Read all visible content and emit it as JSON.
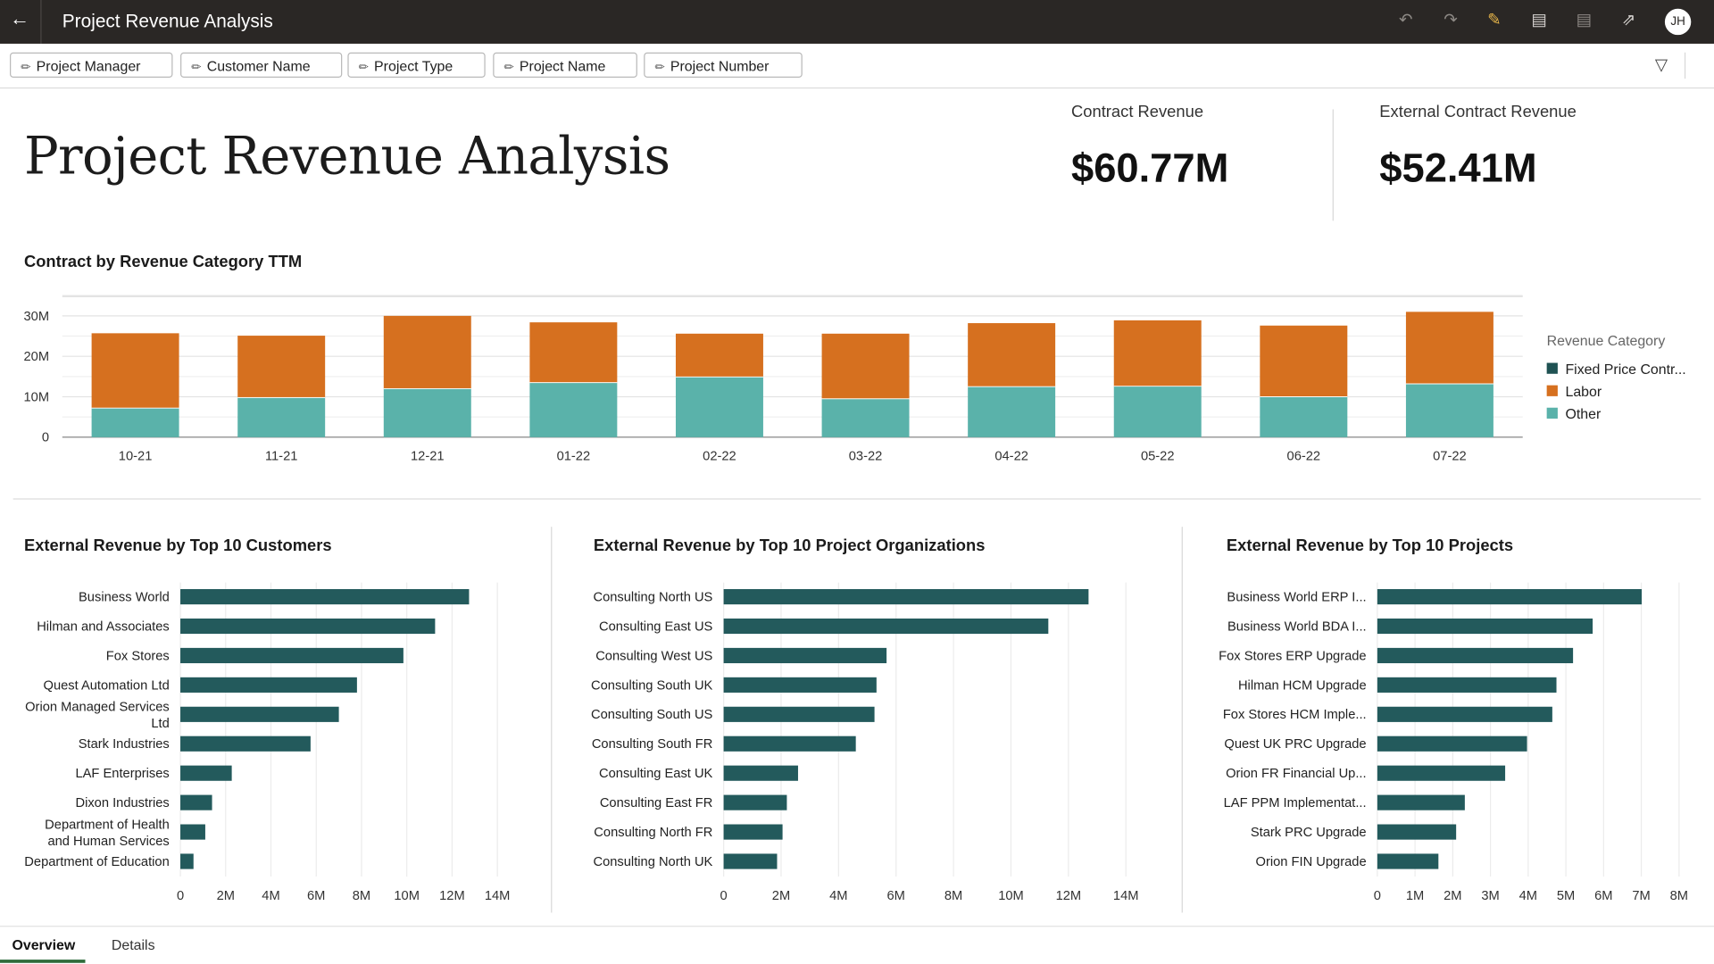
{
  "header": {
    "title": "Project Revenue Analysis",
    "avatar": "JH",
    "icons": [
      "undo-icon",
      "redo-icon",
      "edit-icon",
      "data-icon",
      "comment-icon",
      "export-icon"
    ]
  },
  "filters": [
    "Project Manager",
    "Customer Name",
    "Project Type",
    "Project Name",
    "Project Number"
  ],
  "page_title": "Project Revenue Analysis",
  "kpis": [
    {
      "label": "Contract Revenue",
      "value": "$60.77M"
    },
    {
      "label": "External Contract Revenue",
      "value": "$52.41M"
    }
  ],
  "colors": {
    "fixed": "#1f5253",
    "labor": "#d6701f",
    "other": "#5ab2aa",
    "hbar": "#235a5c",
    "accent_tab": "#2e6b3a"
  },
  "chart_data": [
    {
      "type": "bar",
      "stacked": true,
      "title": "Contract by Revenue Category TTM",
      "categories": [
        "10-21",
        "11-21",
        "12-21",
        "01-22",
        "02-22",
        "03-22",
        "04-22",
        "05-22",
        "06-22",
        "07-22"
      ],
      "yticks": [
        "0",
        "10M",
        "20M",
        "30M"
      ],
      "ylim": [
        0,
        35
      ],
      "unit": "M",
      "legend_title": "Revenue Category",
      "legend_position": "right",
      "series": [
        {
          "name": "Fixed Price Contr...",
          "values": [
            0,
            0,
            0,
            0,
            0,
            0,
            0,
            0,
            0,
            0
          ]
        },
        {
          "name": "Labor",
          "values": [
            18.4,
            15.2,
            17.9,
            14.8,
            10.6,
            16.0,
            15.6,
            16.2,
            17.5,
            17.7
          ]
        },
        {
          "name": "Other",
          "values": [
            7.3,
            9.9,
            12.1,
            13.6,
            15.0,
            9.6,
            12.6,
            12.7,
            10.1,
            13.3
          ]
        }
      ]
    },
    {
      "type": "bar",
      "orientation": "horizontal",
      "title": "External Revenue by Top 10 Customers",
      "categories": [
        "Business World",
        "Hilman and Associates",
        "Fox Stores",
        "Quest Automation Ltd",
        "Orion Managed Services Ltd",
        "Stark Industries",
        "LAF Enterprises",
        "Dixon Industries",
        "Department of Health and Human Services",
        "Department of Education"
      ],
      "values": [
        12.75,
        11.25,
        9.85,
        7.8,
        7.0,
        5.75,
        2.27,
        1.4,
        1.1,
        0.58
      ],
      "xticks": [
        "0",
        "2M",
        "4M",
        "6M",
        "8M",
        "10M",
        "12M",
        "14M"
      ],
      "xlim": [
        0,
        14
      ]
    },
    {
      "type": "bar",
      "orientation": "horizontal",
      "title": "External Revenue by Top 10 Project Organizations",
      "categories": [
        "Consulting North US",
        "Consulting East US",
        "Consulting West US",
        "Consulting South UK",
        "Consulting South US",
        "Consulting South FR",
        "Consulting East UK",
        "Consulting East FR",
        "Consulting North FR",
        "Consulting North UK"
      ],
      "values": [
        12.7,
        11.3,
        5.67,
        5.32,
        5.25,
        4.6,
        2.59,
        2.2,
        2.05,
        1.86
      ],
      "xticks": [
        "0",
        "2M",
        "4M",
        "6M",
        "8M",
        "10M",
        "12M",
        "14M"
      ],
      "xlim": [
        0,
        14
      ]
    },
    {
      "type": "bar",
      "orientation": "horizontal",
      "title": "External Revenue by Top 10 Projects",
      "categories": [
        "Business World ERP I...",
        "Business World BDA I...",
        "Fox Stores ERP Upgrade",
        "Hilman HCM Upgrade",
        "Fox Stores HCM Imple...",
        "Quest UK PRC Upgrade",
        "Orion FR Financial Up...",
        "LAF PPM Implementat...",
        "Stark PRC Upgrade",
        "Orion FIN Upgrade"
      ],
      "values": [
        7.01,
        5.71,
        5.19,
        4.75,
        4.64,
        3.97,
        3.39,
        2.32,
        2.09,
        1.62
      ],
      "xticks": [
        "0",
        "1M",
        "2M",
        "3M",
        "4M",
        "5M",
        "6M",
        "7M",
        "8M"
      ],
      "xlim": [
        0,
        8
      ]
    }
  ],
  "tabs": [
    {
      "label": "Overview",
      "active": true
    },
    {
      "label": "Details",
      "active": false
    }
  ]
}
